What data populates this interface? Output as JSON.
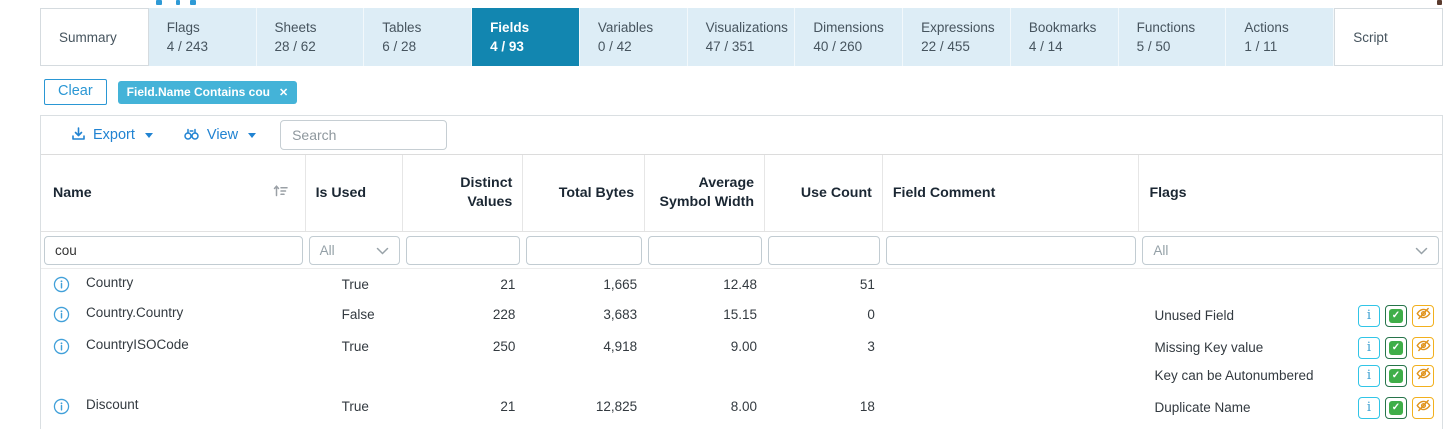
{
  "tabs": [
    {
      "label": "Summary",
      "count": ""
    },
    {
      "label": "Flags",
      "count": "4 / 243"
    },
    {
      "label": "Sheets",
      "count": "28 / 62"
    },
    {
      "label": "Tables",
      "count": "6 / 28"
    },
    {
      "label": "Fields",
      "count": "4 / 93",
      "active": true
    },
    {
      "label": "Variables",
      "count": "0 / 42"
    },
    {
      "label": "Visualizations",
      "count": "47 / 351"
    },
    {
      "label": "Dimensions",
      "count": "40 / 260"
    },
    {
      "label": "Expressions",
      "count": "22 / 455"
    },
    {
      "label": "Bookmarks",
      "count": "4 / 14"
    },
    {
      "label": "Functions",
      "count": "5 / 50"
    },
    {
      "label": "Actions",
      "count": "1 / 11"
    },
    {
      "label": "Script",
      "count": ""
    }
  ],
  "filter_bar": {
    "clear_label": "Clear",
    "chip_label": "Field.Name Contains cou",
    "chip_close": "✕"
  },
  "toolbar": {
    "export_label": "Export",
    "view_label": "View",
    "search_placeholder": "Search"
  },
  "table": {
    "columns": [
      "Name",
      "Is Used",
      "Distinct Values",
      "Total Bytes",
      "Average Symbol Width",
      "Use Count",
      "Field Comment",
      "Flags"
    ],
    "filters": {
      "name_value": "cou",
      "is_used_value": "All",
      "distinct_values_value": "",
      "total_bytes_value": "",
      "average_symbol_width_value": "",
      "use_count_value": "",
      "field_comment_value": "",
      "flags_value": "All"
    },
    "rows": [
      {
        "name": "Country",
        "is_used": "True",
        "distinct_values": "21",
        "total_bytes": "1,665",
        "avg_symbol_width": "12.48",
        "use_count": "51",
        "field_comment": "",
        "flags": []
      },
      {
        "name": "Country.Country",
        "is_used": "False",
        "distinct_values": "228",
        "total_bytes": "3,683",
        "avg_symbol_width": "15.15",
        "use_count": "0",
        "field_comment": "",
        "flags": [
          "Unused Field"
        ]
      },
      {
        "name": "CountryISOCode",
        "is_used": "True",
        "distinct_values": "250",
        "total_bytes": "4,918",
        "avg_symbol_width": "9.00",
        "use_count": "3",
        "field_comment": "",
        "flags": [
          "Missing Key value",
          "Key can be Autonumbered"
        ]
      },
      {
        "name": "Discount",
        "is_used": "True",
        "distinct_values": "21",
        "total_bytes": "12,825",
        "avg_symbol_width": "8.00",
        "use_count": "18",
        "field_comment": "",
        "flags": [
          "Duplicate Name"
        ]
      }
    ]
  },
  "icons": {
    "export": "download-icon",
    "view": "binoculars-icon",
    "dropdown": "chevron-down-icon",
    "name_sort": "sort-ascending-icon",
    "row_info": "info-circle-icon",
    "flag_info": "info-letter-icon",
    "flag_confirm": "checkbox-checked-icon",
    "flag_hide": "eye-off-icon",
    "chip_close": "close-icon"
  },
  "colors": {
    "active_tab": "#1286b0",
    "inactive_tab_bg": "#ddedf6",
    "chip_bg": "#44b3d8",
    "link_blue": "#2183d2",
    "clear_button_blue": "#2a97d4",
    "info_icon_blue": "#41a0d9",
    "flag_info_border": "#31c5e7",
    "flag_check_green": "#3fae49",
    "flag_check_border": "#27744b",
    "flag_eye_amber": "#f2b01e",
    "flag_eye_icon": "#e0931c"
  }
}
